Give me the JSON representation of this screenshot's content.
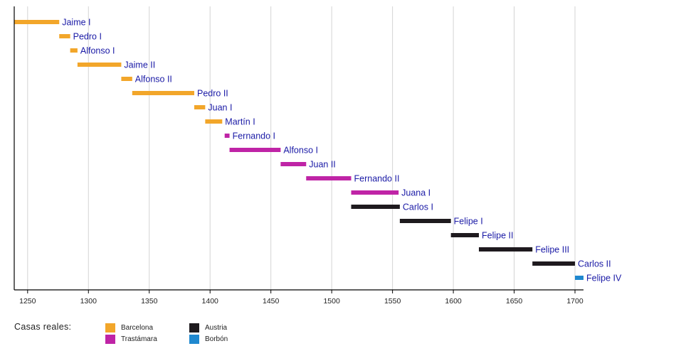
{
  "chart_data": {
    "type": "timeline",
    "title": "",
    "xlabel": "",
    "ylabel": "",
    "xlim": [
      1239,
      1707
    ],
    "x_ticks": [
      1250,
      1300,
      1350,
      1400,
      1450,
      1500,
      1550,
      1600,
      1650,
      1700
    ],
    "grid": true,
    "houses": [
      {
        "id": "barcelona",
        "name": "Barcelona",
        "color": "#f2a62a"
      },
      {
        "id": "trastamara",
        "name": "Trastámara",
        "color": "#bf24a6"
      },
      {
        "id": "austria",
        "name": "Austria",
        "color": "#1e1a1e"
      },
      {
        "id": "borbon",
        "name": "Borbón",
        "color": "#1f88cf"
      }
    ],
    "reigns": [
      {
        "name": "Jaime I",
        "house": "barcelona",
        "start": 1239,
        "end": 1276
      },
      {
        "name": "Pedro I",
        "house": "barcelona",
        "start": 1276,
        "end": 1285
      },
      {
        "name": "Alfonso I",
        "house": "barcelona",
        "start": 1285,
        "end": 1291
      },
      {
        "name": "Jaime II",
        "house": "barcelona",
        "start": 1291,
        "end": 1327
      },
      {
        "name": "Alfonso II",
        "house": "barcelona",
        "start": 1327,
        "end": 1336
      },
      {
        "name": "Pedro II",
        "house": "barcelona",
        "start": 1336,
        "end": 1387
      },
      {
        "name": "Juan I",
        "house": "barcelona",
        "start": 1387,
        "end": 1396
      },
      {
        "name": "Martín I",
        "house": "barcelona",
        "start": 1396,
        "end": 1410
      },
      {
        "name": "Fernando I",
        "house": "trastamara",
        "start": 1412,
        "end": 1416
      },
      {
        "name": "Alfonso I",
        "house": "trastamara",
        "start": 1416,
        "end": 1458
      },
      {
        "name": "Juan II",
        "house": "trastamara",
        "start": 1458,
        "end": 1479
      },
      {
        "name": "Fernando II",
        "house": "trastamara",
        "start": 1479,
        "end": 1516
      },
      {
        "name": "Juana I",
        "house": "trastamara",
        "start": 1516,
        "end": 1555
      },
      {
        "name": "Carlos I",
        "house": "austria",
        "start": 1516,
        "end": 1556
      },
      {
        "name": "Felipe I",
        "house": "austria",
        "start": 1556,
        "end": 1598
      },
      {
        "name": "Felipe II",
        "house": "austria",
        "start": 1598,
        "end": 1621
      },
      {
        "name": "Felipe III",
        "house": "austria",
        "start": 1621,
        "end": 1665
      },
      {
        "name": "Carlos II",
        "house": "austria",
        "start": 1665,
        "end": 1700
      },
      {
        "name": "Felipe IV",
        "house": "borbon",
        "start": 1700,
        "end": 1707
      }
    ],
    "legend": {
      "title": "Casas reales:",
      "position": "bottom-left"
    },
    "label_color": "#1a1aa6"
  }
}
